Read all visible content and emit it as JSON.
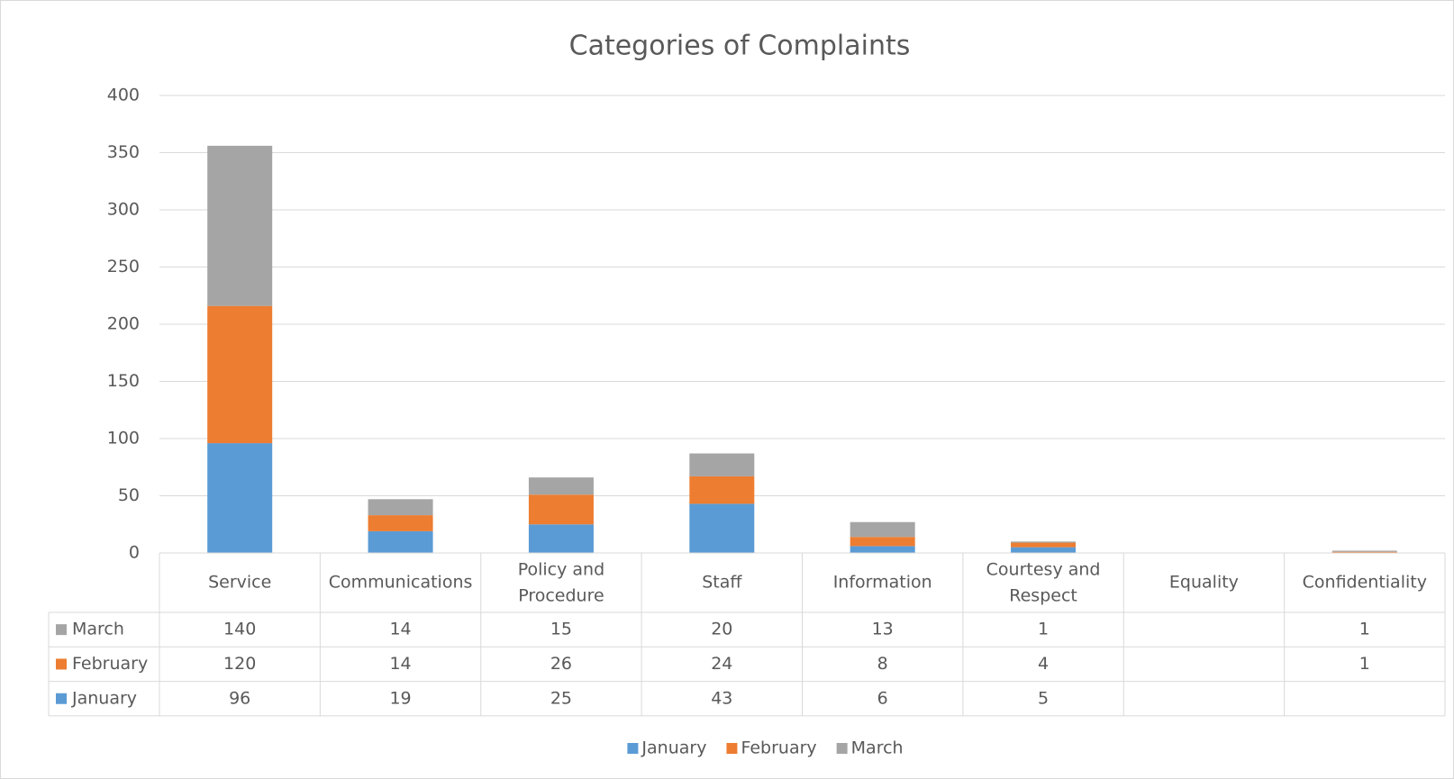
{
  "chart_data": {
    "type": "stacked_bar",
    "title": "Categories of Complaints",
    "categories": [
      "Service",
      "Communications",
      "Policy and Procedure",
      "Staff",
      "Information",
      "Courtesy and Respect",
      "Equality",
      "Confidentiality"
    ],
    "series": [
      {
        "name": "January",
        "color": "#5b9bd5",
        "values": [
          96,
          19,
          25,
          43,
          6,
          5,
          null,
          null
        ]
      },
      {
        "name": "February",
        "color": "#ed7d31",
        "values": [
          120,
          14,
          26,
          24,
          8,
          4,
          null,
          1
        ]
      },
      {
        "name": "March",
        "color": "#a5a5a5",
        "values": [
          140,
          14,
          15,
          20,
          13,
          1,
          null,
          1
        ]
      }
    ],
    "ylim": [
      0,
      400
    ],
    "yticks": [
      0,
      50,
      100,
      150,
      200,
      250,
      300,
      350,
      400
    ],
    "grid": true,
    "legend": "bottom"
  }
}
